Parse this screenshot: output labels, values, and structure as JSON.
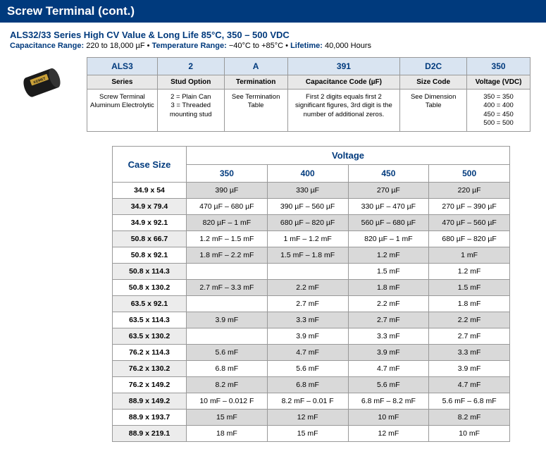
{
  "header": "Screw Terminal (cont.)",
  "title": "ALS32/33 Series High CV Value & Long Life 85°C, 350 – 500 VDC",
  "specs": [
    {
      "label": "Capacitance Range:",
      "value": "220 to 18,000 µF"
    },
    {
      "label": "Temperature Range:",
      "value": "−40°C to +85°C"
    },
    {
      "label": "Lifetime:",
      "value": "40,000 Hours"
    }
  ],
  "partTable": {
    "codes": [
      "ALS3",
      "2",
      "A",
      "391",
      "D2C",
      "350"
    ],
    "labels": [
      "Series",
      "Stud Option",
      "Termination",
      "Capacitance Code (µF)",
      "Size Code",
      "Voltage (VDC)"
    ],
    "descs": [
      "Screw Terminal Aluminum Electrolytic",
      "2 = Plain Can\n3 = Threaded mounting stud",
      "See Termination Table",
      "First 2 digits equals first 2 significant figures, 3rd digit is the number of additional zeros.",
      "See Dimension Table",
      "350 = 350\n400 = 400\n450 = 450\n500 = 500"
    ],
    "widths": [
      "100",
      "95",
      "90",
      "160",
      "95",
      "90"
    ]
  },
  "voltageTable": {
    "caseLabel": "Case Size",
    "voltageLabel": "Voltage",
    "voltages": [
      "350",
      "400",
      "450",
      "500"
    ],
    "rows": [
      {
        "size": "34.9 x 54",
        "v": [
          "390 µF",
          "330 µF",
          "270 µF",
          "220 µF"
        ]
      },
      {
        "size": "34.9 x 79.4",
        "v": [
          "470 µF – 680 µF",
          "390 µF – 560 µF",
          "330 µF – 470 µF",
          "270 µF – 390 µF"
        ]
      },
      {
        "size": "34.9 x 92.1",
        "v": [
          "820 µF – 1 mF",
          "680 µF – 820 µF",
          "560 µF – 680 µF",
          "470 µF – 560 µF"
        ]
      },
      {
        "size": "50.8 x 66.7",
        "v": [
          "1.2 mF – 1.5 mF",
          "1 mF – 1.2 mF",
          "820 µF – 1 mF",
          "680 µF – 820 µF"
        ]
      },
      {
        "size": "50.8 x 92.1",
        "v": [
          "1.8 mF – 2.2 mF",
          "1.5 mF – 1.8 mF",
          "1.2 mF",
          "1 mF"
        ]
      },
      {
        "size": "50.8 x 114.3",
        "v": [
          "",
          "",
          "1.5 mF",
          "1.2 mF"
        ]
      },
      {
        "size": "50.8 x 130.2",
        "v": [
          "2.7 mF – 3.3 mF",
          "2.2 mF",
          "1.8 mF",
          "1.5 mF"
        ]
      },
      {
        "size": "63.5 x 92.1",
        "v": [
          "",
          "2.7 mF",
          "2.2 mF",
          "1.8 mF"
        ]
      },
      {
        "size": "63.5 x 114.3",
        "v": [
          "3.9 mF",
          "3.3 mF",
          "2.7 mF",
          "2.2 mF"
        ]
      },
      {
        "size": "63.5 x 130.2",
        "v": [
          "",
          "3.9 mF",
          "3.3 mF",
          "2.7 mF"
        ]
      },
      {
        "size": "76.2 x 114.3",
        "v": [
          "5.6 mF",
          "4.7 mF",
          "3.9 mF",
          "3.3 mF"
        ]
      },
      {
        "size": "76.2 x 130.2",
        "v": [
          "6.8 mF",
          "5.6 mF",
          "4.7 mF",
          "3.9 mF"
        ]
      },
      {
        "size": "76.2 x 149.2",
        "v": [
          "8.2 mF",
          "6.8 mF",
          "5.6 mF",
          "4.7 mF"
        ]
      },
      {
        "size": "88.9 x 149.2",
        "v": [
          "10 mF – 0.012 F",
          "8.2 mF – 0.01 F",
          "6.8 mF – 8.2 mF",
          "5.6 mF – 6.8 mF"
        ]
      },
      {
        "size": "88.9 x 193.7",
        "v": [
          "15 mF",
          "12 mF",
          "10 mF",
          "8.2 mF"
        ]
      },
      {
        "size": "88.9 x 219.1",
        "v": [
          "18 mF",
          "15 mF",
          "12 mF",
          "10 mF"
        ]
      }
    ]
  },
  "colors": {
    "brand": "#003a7d",
    "cellGreyBg": "#d9d9d9",
    "labelBg": "#e8e8e8",
    "codeBg": "#d9e4f1"
  }
}
